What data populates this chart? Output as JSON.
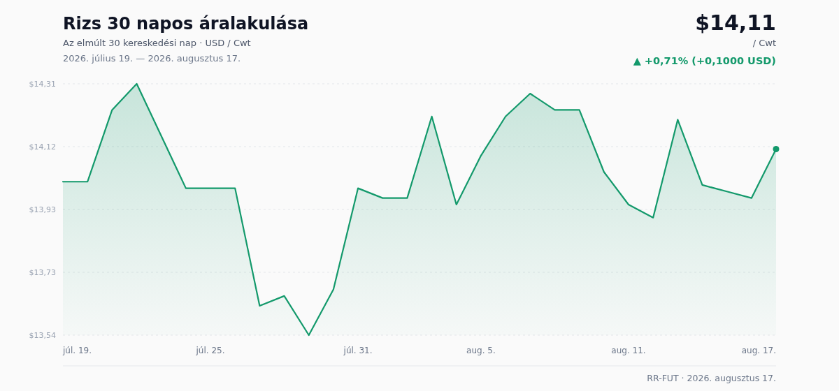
{
  "chart_data": {
    "type": "area",
    "title": "Rizs 30 napos áralakulása",
    "subtitle": "Az elmúlt 30 kereskedési nap · USD / Cwt",
    "annotations": [
      "2026. július 19. — 2026. augusztus 17.",
      "$14,11",
      "/ Cwt",
      "▲ +0,71% (+0,1000 USD)",
      "RR-FUT · 2026. augusztus 17."
    ],
    "x": [
      "2026-07-19",
      "2026-07-20",
      "2026-07-21",
      "2026-07-22",
      "2026-07-23",
      "2026-07-24",
      "2026-07-25",
      "2026-07-26",
      "2026-07-27",
      "2026-07-28",
      "2026-07-29",
      "2026-07-30",
      "2026-07-31",
      "2026-08-01",
      "2026-08-02",
      "2026-08-03",
      "2026-08-04",
      "2026-08-05",
      "2026-08-06",
      "2026-08-07",
      "2026-08-08",
      "2026-08-09",
      "2026-08-10",
      "2026-08-11",
      "2026-08-12",
      "2026-08-13",
      "2026-08-14",
      "2026-08-15",
      "2026-08-16",
      "2026-08-17"
    ],
    "series": [
      {
        "color": "#13996b",
        "values": [
          14.01,
          14.01,
          14.23,
          14.31,
          14.15,
          13.99,
          13.99,
          13.99,
          13.63,
          13.66,
          13.54,
          13.68,
          13.99,
          13.96,
          13.96,
          14.21,
          13.94,
          14.09,
          14.21,
          14.28,
          14.23,
          14.23,
          14.04,
          13.94,
          13.9,
          14.2,
          14.0,
          13.98,
          13.96,
          14.11
        ]
      }
    ],
    "xlim": [
      "2026-07-19",
      "2026-08-17"
    ],
    "xticks": [
      {
        "value": "2026-07-19",
        "label": "júl. 19."
      },
      {
        "value": "2026-07-25",
        "label": "júl. 25."
      },
      {
        "value": "2026-07-31",
        "label": "júl. 31."
      },
      {
        "value": "2026-08-05",
        "label": "aug. 5."
      },
      {
        "value": "2026-08-11",
        "label": "aug. 11."
      },
      {
        "value": "2026-08-17",
        "label": "aug. 17."
      }
    ],
    "ylim": [
      13.54,
      14.31
    ],
    "yticks": [
      {
        "value": 13.54,
        "label": "$13,54"
      },
      {
        "value": 13.7325,
        "label": "$13,73"
      },
      {
        "value": 13.925,
        "label": "$13,93"
      },
      {
        "value": 14.1175,
        "label": "$14,12"
      },
      {
        "value": 14.31,
        "label": "$14,31"
      }
    ],
    "grid": "y"
  }
}
